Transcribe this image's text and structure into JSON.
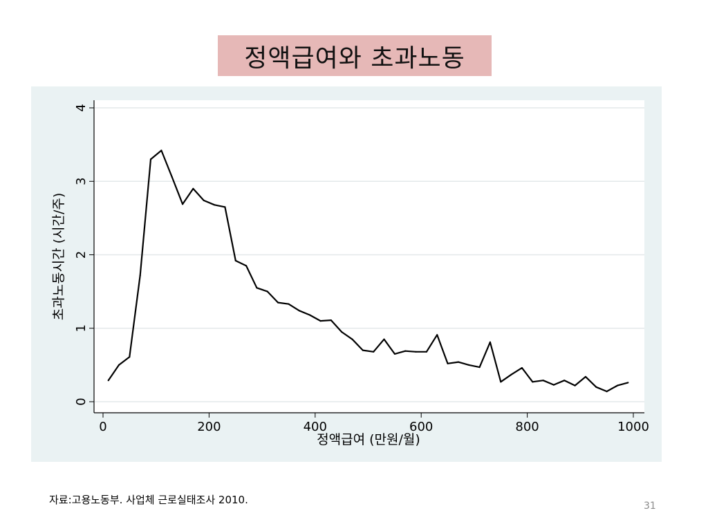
{
  "slide": {
    "title": "정액급여와 초과노동",
    "source": "자료:고용노동부. 사업체 근로실태조사 2010.",
    "page_number": "31"
  },
  "chart_data": {
    "type": "line",
    "title": "",
    "xlabel": "정액급여 (만원/월)",
    "ylabel": "초과노동시간 (시간/주)",
    "xlim": [
      0,
      1000
    ],
    "ylim": [
      0,
      4
    ],
    "xticks": [
      0,
      200,
      400,
      600,
      800,
      1000
    ],
    "yticks": [
      0,
      1,
      2,
      3,
      4
    ],
    "grid": true,
    "line_color": "#000000",
    "series": [
      {
        "x": [
          10,
          30,
          50,
          70,
          90,
          110,
          130,
          150,
          170,
          190,
          210,
          230,
          250,
          270,
          290,
          310,
          330,
          350,
          370,
          390,
          410,
          430,
          450,
          470,
          490,
          510,
          530,
          550,
          570,
          590,
          610,
          630,
          650,
          670,
          690,
          710,
          730,
          750,
          770,
          790,
          810,
          830,
          850,
          870,
          890,
          910,
          930,
          950,
          970,
          990
        ],
        "y": [
          0.29,
          0.5,
          0.61,
          1.72,
          3.3,
          3.42,
          3.06,
          2.69,
          2.9,
          2.74,
          2.68,
          2.65,
          1.92,
          1.85,
          1.55,
          1.5,
          1.35,
          1.33,
          1.24,
          1.18,
          1.1,
          1.11,
          0.95,
          0.85,
          0.7,
          0.68,
          0.85,
          0.65,
          0.69,
          0.68,
          0.68,
          0.91,
          0.52,
          0.54,
          0.5,
          0.47,
          0.81,
          0.27,
          0.37,
          0.46,
          0.27,
          0.29,
          0.23,
          0.29,
          0.22,
          0.34,
          0.2,
          0.14,
          0.22,
          0.26
        ]
      }
    ]
  }
}
